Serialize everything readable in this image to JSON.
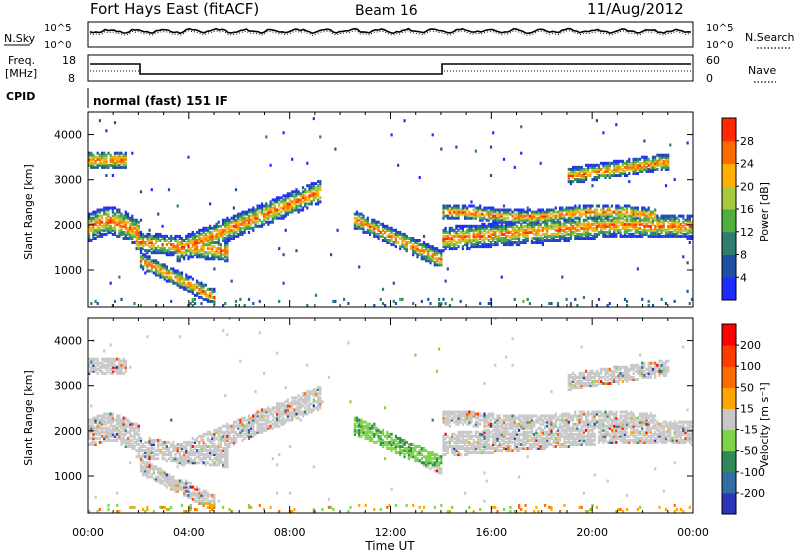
{
  "header": {
    "station": "Fort Hays East (fitACF)",
    "beam": "Beam 16",
    "date": "11/Aug/2012"
  },
  "top_panels": {
    "nsky_label": "N.Sky",
    "nsearch_label": "N.Search",
    "nsky_ticks": [
      "10^5",
      "10^0"
    ],
    "nsearch_ticks": [
      "10^5",
      "10^0"
    ],
    "freq_label_1": "Freq.",
    "freq_label_2": "[MHz]",
    "freq_ticks": [
      "18",
      "8"
    ],
    "nave_label": "Nave",
    "nave_ticks": [
      "60",
      "0"
    ],
    "cpid_label": "CPID",
    "cpid_text": "normal (fast) 151 IF"
  },
  "chart_data": [
    {
      "type": "heatmap",
      "panel": "power",
      "ylabel": "Slant Range [km]",
      "xlabel": "",
      "x_ticks": [
        "00:00",
        "04:00",
        "08:00",
        "12:00",
        "16:00",
        "20:00",
        "00:00"
      ],
      "y_ticks": [
        1000,
        2000,
        3000,
        4000
      ],
      "ylim": [
        180,
        4500
      ],
      "xlim_hours": [
        0,
        24
      ],
      "colorbar": {
        "label": "Power [dB]",
        "ticks": [
          "4",
          "8",
          "12",
          "16",
          "20",
          "24",
          "28"
        ],
        "colors": [
          "#1d2bff",
          "#1f4fa3",
          "#2e7d6e",
          "#4fae3f",
          "#a7c93b",
          "#ffb000",
          "#ff6a00",
          "#ff2a00"
        ]
      }
    },
    {
      "type": "heatmap",
      "panel": "velocity",
      "ylabel": "Slant Range [km]",
      "xlabel": "Time UT",
      "x_ticks": [
        "00:00",
        "04:00",
        "08:00",
        "12:00",
        "16:00",
        "20:00",
        "00:00"
      ],
      "y_ticks": [
        1000,
        2000,
        3000,
        4000
      ],
      "ylim": [
        180,
        4500
      ],
      "xlim_hours": [
        0,
        24
      ],
      "colorbar": {
        "label": "Velocity [m s⁻¹]",
        "ticks": [
          "200",
          "100",
          "50",
          "15",
          "-15",
          "-50",
          "-100",
          "-200"
        ],
        "colors": [
          "#2b35b5",
          "#2f6fa6",
          "#2e8b57",
          "#7fd34a",
          "#c8c8c8",
          "#ffa500",
          "#ff6a00",
          "#ff3b00",
          "#ff0000"
        ]
      }
    }
  ]
}
